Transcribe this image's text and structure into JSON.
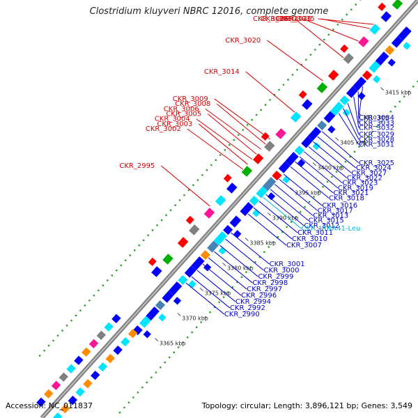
{
  "title": "Clostridium kluyveri NBRC 12016, complete genome",
  "footer": {
    "accession": "Accession: NC_011837",
    "stats": "Topology: circular; Length: 3,896,121 bp; Genes: 3,549"
  },
  "ticks": [
    {
      "label": "3365 kbp",
      "t": 0.24
    },
    {
      "label": "3370 kbp",
      "t": 0.3
    },
    {
      "label": "3375 kbp",
      "t": 0.36
    },
    {
      "label": "3380 kbp",
      "t": 0.42
    },
    {
      "label": "3385 kbp",
      "t": 0.48
    },
    {
      "label": "3390 kbp",
      "t": 0.54
    },
    {
      "label": "3395 kbp",
      "t": 0.6
    },
    {
      "label": "3400 kbp",
      "t": 0.66
    },
    {
      "label": "3405 kbp",
      "t": 0.72
    },
    {
      "label": "3410 kbp",
      "t": 0.78
    },
    {
      "label": "3415 kbp",
      "t": 0.84
    }
  ],
  "labels_forward": [
    {
      "text": "CKR_3036",
      "t": 0.915
    },
    {
      "text": "CKR_3035",
      "t": 0.905
    },
    {
      "text": "CKR_3030",
      "t": 0.875
    },
    {
      "text": "CKR_3026",
      "t": 0.835
    },
    {
      "text": "CKR_3020",
      "t": 0.78
    },
    {
      "text": "CKR_3014",
      "t": 0.705
    },
    {
      "text": "CKR_3009",
      "t": 0.64
    },
    {
      "text": "CKR_3008",
      "t": 0.628
    },
    {
      "text": "CKR_3006",
      "t": 0.616
    },
    {
      "text": "CKR_3005",
      "t": 0.604
    },
    {
      "text": "CKR_3004",
      "t": 0.592
    },
    {
      "text": "CKR_3003",
      "t": 0.58
    },
    {
      "text": "CKR_3002",
      "t": 0.568
    },
    {
      "text": "CKR_2995",
      "t": 0.48
    }
  ],
  "labels_reverse": [
    {
      "text": "CKR_3034",
      "t": 0.82
    },
    {
      "text": "CKR_3033",
      "t": 0.808
    },
    {
      "text": "CKR_3032",
      "t": 0.796
    },
    {
      "text": "CKR_3029",
      "t": 0.78
    },
    {
      "text": "CKR_3028",
      "t": 0.768
    },
    {
      "text": "CKR_3031",
      "t": 0.756
    },
    {
      "text": "CKR_3025",
      "t": 0.712
    },
    {
      "text": "CKR_3024",
      "t": 0.7
    },
    {
      "text": "CKR_3027",
      "t": 0.688
    },
    {
      "text": "CKR_3022",
      "t": 0.676
    },
    {
      "text": "CKR_3023",
      "t": 0.664
    },
    {
      "text": "CKR_3019",
      "t": 0.652
    },
    {
      "text": "CKR_3021",
      "t": 0.64
    },
    {
      "text": "CKR_3018",
      "t": 0.628
    },
    {
      "text": "CKR_3016",
      "t": 0.61
    },
    {
      "text": "CKR_3017",
      "t": 0.598
    },
    {
      "text": "CKR_3013",
      "t": 0.586
    },
    {
      "text": "CKR_3015",
      "t": 0.574
    },
    {
      "text": "CKR_3012",
      "t": 0.562
    },
    {
      "text": "CKR_tRNA41-Leu",
      "t": 0.555,
      "tRNA": true
    },
    {
      "text": "CKR_3011",
      "t": 0.545
    },
    {
      "text": "CKR_3010",
      "t": 0.53
    },
    {
      "text": "CKR_3007",
      "t": 0.515
    },
    {
      "text": "CKR_3001",
      "t": 0.47
    },
    {
      "text": "CKR_3000",
      "t": 0.455
    },
    {
      "text": "CKR_2999",
      "t": 0.44
    },
    {
      "text": "CKR_2998",
      "t": 0.425
    },
    {
      "text": "CKR_2997",
      "t": 0.41
    },
    {
      "text": "CKR_2996",
      "t": 0.395
    },
    {
      "text": "CKR_2994",
      "t": 0.38
    },
    {
      "text": "CKR_2992",
      "t": 0.365
    },
    {
      "text": "CKR_2990",
      "t": 0.35
    }
  ],
  "colors": {
    "forward_label": "#d40000",
    "reverse_label": "#0000cc",
    "trna_label": "#00b4d8",
    "backbone": "#7f7f7f",
    "dots": "#2ca02c"
  }
}
